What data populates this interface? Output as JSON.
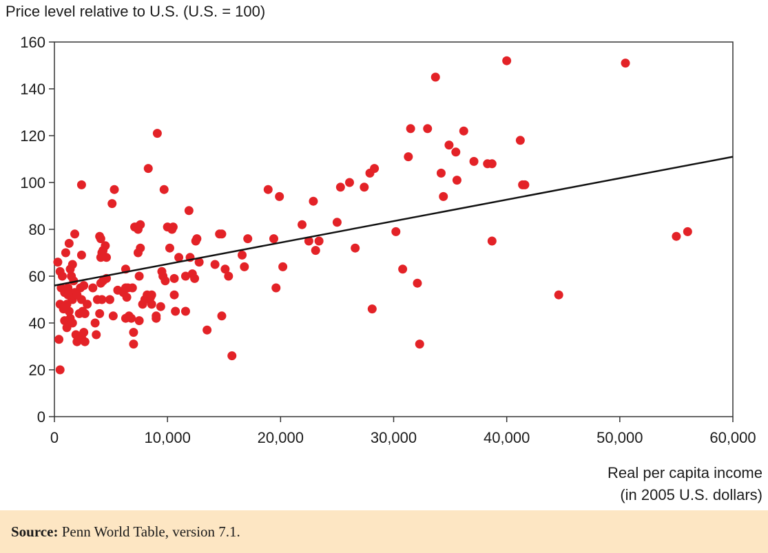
{
  "chart_data": {
    "type": "scatter",
    "ylabel": "Price level relative to U.S. (U.S. = 100)",
    "xlabel": [
      "Real per capita income",
      "(in 2005 U.S. dollars)"
    ],
    "xlim": [
      0,
      60000
    ],
    "ylim": [
      0,
      160
    ],
    "x_ticks": [
      0,
      10000,
      20000,
      30000,
      40000,
      50000,
      60000
    ],
    "x_tick_labels": [
      "0",
      "10,000",
      "20,000",
      "30,000",
      "40,000",
      "50,000",
      "60,000"
    ],
    "y_ticks": [
      0,
      20,
      40,
      60,
      80,
      100,
      120,
      140,
      160
    ],
    "y_tick_labels": [
      "0",
      "20",
      "40",
      "60",
      "80",
      "100",
      "120",
      "140",
      "160"
    ],
    "grid": false,
    "point_color": "#e32227",
    "trend_line": {
      "x": [
        0,
        60000
      ],
      "y": [
        56,
        111
      ]
    },
    "points": [
      [
        500,
        20
      ],
      [
        400,
        33
      ],
      [
        300,
        66
      ],
      [
        500,
        62
      ],
      [
        700,
        60
      ],
      [
        1000,
        70
      ],
      [
        600,
        55
      ],
      [
        900,
        53
      ],
      [
        1200,
        55
      ],
      [
        1500,
        51
      ],
      [
        1100,
        48
      ],
      [
        500,
        48
      ],
      [
        800,
        46
      ],
      [
        1300,
        45
      ],
      [
        900,
        41
      ],
      [
        1400,
        42
      ],
      [
        1100,
        38
      ],
      [
        1600,
        40
      ],
      [
        1900,
        35
      ],
      [
        2000,
        32
      ],
      [
        2400,
        34
      ],
      [
        2600,
        36
      ],
      [
        2700,
        32
      ],
      [
        2200,
        44
      ],
      [
        2700,
        44
      ],
      [
        2500,
        45
      ],
      [
        2400,
        50
      ],
      [
        2300,
        55
      ],
      [
        2600,
        56
      ],
      [
        1800,
        53
      ],
      [
        1700,
        58
      ],
      [
        1500,
        60
      ],
      [
        1400,
        63
      ],
      [
        1600,
        65
      ],
      [
        1300,
        74
      ],
      [
        1800,
        78
      ],
      [
        2400,
        69
      ],
      [
        2400,
        99
      ],
      [
        1600,
        50
      ],
      [
        2000,
        52
      ],
      [
        1200,
        52
      ],
      [
        900,
        47
      ],
      [
        3400,
        55
      ],
      [
        3600,
        40
      ],
      [
        3700,
        35
      ],
      [
        3800,
        50
      ],
      [
        4000,
        44
      ],
      [
        4100,
        57
      ],
      [
        4200,
        50
      ],
      [
        4300,
        58
      ],
      [
        4100,
        68
      ],
      [
        4300,
        71
      ],
      [
        4500,
        73
      ],
      [
        4600,
        68
      ],
      [
        4000,
        77
      ],
      [
        4100,
        76
      ],
      [
        4200,
        70
      ],
      [
        4600,
        59
      ],
      [
        4900,
        50
      ],
      [
        5200,
        43
      ],
      [
        5600,
        54
      ],
      [
        6100,
        53
      ],
      [
        6300,
        42
      ],
      [
        6500,
        55
      ],
      [
        6600,
        43
      ],
      [
        6800,
        42
      ],
      [
        6400,
        51
      ],
      [
        6300,
        55
      ],
      [
        6300,
        63
      ],
      [
        7000,
        36
      ],
      [
        7000,
        31
      ],
      [
        6900,
        55
      ],
      [
        7100,
        81
      ],
      [
        7300,
        81
      ],
      [
        7400,
        80
      ],
      [
        7600,
        82
      ],
      [
        7600,
        72
      ],
      [
        7400,
        70
      ],
      [
        7500,
        60
      ],
      [
        7500,
        41
      ],
      [
        7800,
        48
      ],
      [
        8000,
        50
      ],
      [
        8200,
        52
      ],
      [
        8500,
        51
      ],
      [
        8600,
        48
      ],
      [
        8300,
        106
      ],
      [
        9100,
        121
      ],
      [
        9000,
        43
      ],
      [
        9400,
        47
      ],
      [
        9500,
        62
      ],
      [
        9600,
        60
      ],
      [
        9800,
        58
      ],
      [
        9700,
        97
      ],
      [
        10000,
        81
      ],
      [
        10500,
        81
      ],
      [
        10200,
        72
      ],
      [
        10600,
        59
      ],
      [
        10600,
        52
      ],
      [
        10700,
        45
      ],
      [
        11000,
        68
      ],
      [
        11600,
        45
      ],
      [
        11600,
        60
      ],
      [
        11900,
        88
      ],
      [
        12000,
        68
      ],
      [
        12200,
        61
      ],
      [
        12400,
        59
      ],
      [
        12500,
        75
      ],
      [
        12600,
        76
      ],
      [
        12800,
        66
      ],
      [
        13500,
        37
      ],
      [
        14200,
        65
      ],
      [
        14600,
        78
      ],
      [
        14800,
        78
      ],
      [
        14800,
        43
      ],
      [
        15100,
        63
      ],
      [
        15400,
        60
      ],
      [
        15700,
        26
      ],
      [
        16600,
        69
      ],
      [
        16800,
        64
      ],
      [
        17100,
        76
      ],
      [
        18900,
        97
      ],
      [
        19400,
        76
      ],
      [
        19600,
        55
      ],
      [
        19900,
        94
      ],
      [
        20200,
        64
      ],
      [
        21900,
        82
      ],
      [
        22500,
        75
      ],
      [
        22900,
        92
      ],
      [
        23100,
        71
      ],
      [
        23400,
        75
      ],
      [
        25000,
        83
      ],
      [
        25300,
        98
      ],
      [
        26100,
        100
      ],
      [
        26600,
        72
      ],
      [
        27400,
        98
      ],
      [
        27900,
        104
      ],
      [
        28300,
        106
      ],
      [
        28100,
        46
      ],
      [
        30200,
        79
      ],
      [
        30800,
        63
      ],
      [
        31300,
        111
      ],
      [
        31500,
        123
      ],
      [
        32100,
        57
      ],
      [
        32300,
        31
      ],
      [
        33000,
        123
      ],
      [
        33700,
        145
      ],
      [
        34200,
        104
      ],
      [
        34400,
        94
      ],
      [
        34900,
        116
      ],
      [
        35500,
        113
      ],
      [
        35600,
        101
      ],
      [
        36200,
        122
      ],
      [
        37100,
        109
      ],
      [
        38300,
        108
      ],
      [
        38700,
        108
      ],
      [
        38700,
        75
      ],
      [
        40000,
        152
      ],
      [
        41200,
        118
      ],
      [
        41400,
        99
      ],
      [
        41600,
        99
      ],
      [
        44600,
        52
      ],
      [
        50500,
        151
      ],
      [
        55000,
        77
      ],
      [
        56000,
        79
      ],
      [
        5100,
        91
      ],
      [
        5300,
        97
      ],
      [
        8600,
        52
      ],
      [
        10400,
        80
      ],
      [
        9000,
        42
      ],
      [
        2900,
        48
      ]
    ]
  },
  "source": {
    "label": "Source:",
    "text": " Penn World Table, version 7.1."
  }
}
